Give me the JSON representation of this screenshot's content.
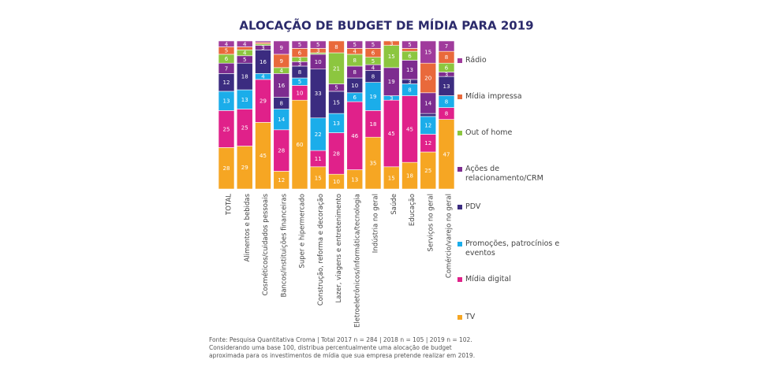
{
  "chart_data": {
    "type": "stacked-bar",
    "title": "ALOCAÇÃO DE BUDGET DE MÍDIA PARA 2019",
    "categories": [
      "TOTAL",
      "Alimentos e bebidas",
      "Cosméticos/cuidados pessoais",
      "Bancos/instituições financeiras",
      "Super e hipermercado",
      "Construção, reforma e decoração",
      "Lazer, viagens e entretenimento",
      "Eletroeletrônicos/informática/tecnologia",
      "Indústria no geral",
      "Saúde",
      "Educação",
      "Serviços no geral",
      "Comércio/varejo no geral"
    ],
    "series": [
      {
        "name": "TV",
        "color": "#f6a623",
        "values": [
          28,
          29,
          45,
          12,
          60,
          15,
          10,
          13,
          35,
          15,
          18,
          25,
          47
        ]
      },
      {
        "name": "Mídia digital",
        "color": "#e0218a",
        "values": [
          25,
          25,
          29,
          28,
          10,
          11,
          28,
          46,
          18,
          45,
          45,
          12,
          8
        ]
      },
      {
        "name": "Promoções, patrocínios e eventos",
        "color": "#1badea",
        "values": [
          13,
          13,
          4,
          14,
          5,
          22,
          13,
          6,
          19,
          3,
          8,
          12,
          8
        ]
      },
      {
        "name": "PDV",
        "color": "#3b2c80",
        "values": [
          12,
          18,
          16,
          8,
          8,
          33,
          15,
          10,
          8,
          0,
          3,
          2,
          13
        ]
      },
      {
        "name": "Ações de relacionamento/CRM",
        "color": "#7d2c8f",
        "values": [
          7,
          5,
          3,
          16,
          3,
          10,
          5,
          8,
          4,
          19,
          13,
          14,
          3
        ]
      },
      {
        "name": "Out of home",
        "color": "#8cc63f",
        "values": [
          6,
          4,
          1,
          4,
          3,
          1,
          21,
          8,
          5,
          15,
          6,
          0,
          6
        ]
      },
      {
        "name": "Mídia impressa",
        "color": "#e9693b",
        "values": [
          5,
          2,
          1,
          9,
          6,
          3,
          8,
          4,
          6,
          3,
          2,
          20,
          8
        ]
      },
      {
        "name": "Rádio",
        "color": "#a03b9c",
        "values": [
          4,
          4,
          1,
          9,
          5,
          5,
          0,
          5,
          5,
          0,
          5,
          15,
          7
        ]
      }
    ],
    "ylim": [
      0,
      100
    ],
    "note": [
      "Fonte: Pesquisa Quantitativa Croma | Total 2017 n = 284 | 2018 n = 105 | 2019 n = 102.",
      "Considerando uma base 100, distribua percentualmente uma alocação de budget",
      "aproximada para os investimentos de mídia que sua empresa pretende realizar em 2019."
    ]
  }
}
